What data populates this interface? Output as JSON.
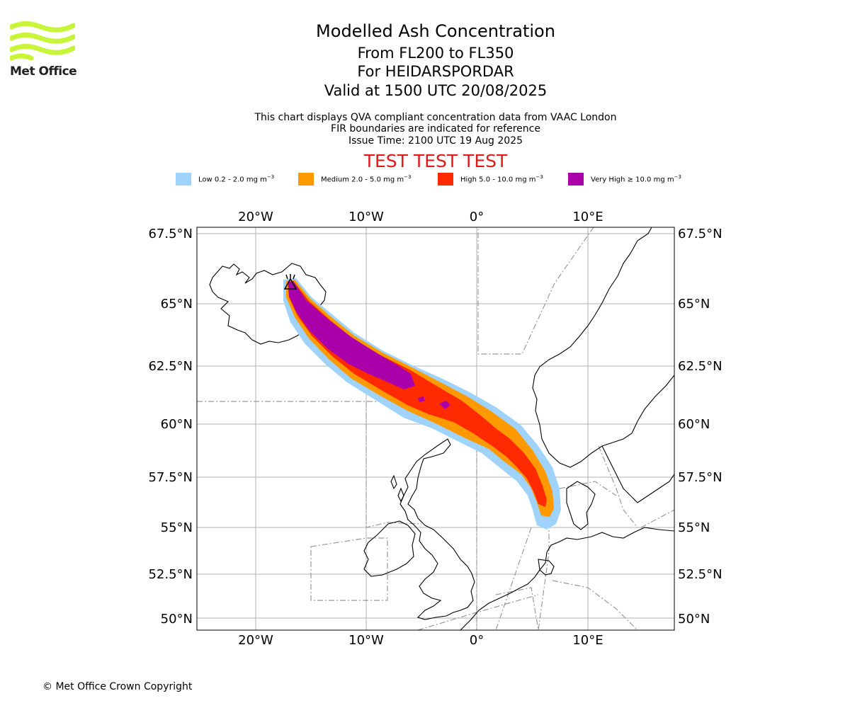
{
  "logo": {
    "text": "Met Office"
  },
  "header": {
    "title": "Modelled Ash Concentration",
    "levels": "From FL200 to FL350",
    "volcano": "For HEIDARSPORDAR",
    "valid": "Valid at 1500 UTC 20/08/2025",
    "note1": "This chart displays QVA compliant concentration data from VAAC London",
    "note2": "FIR boundaries are indicated for reference",
    "issue": "Issue Time: 2100 UTC 19 Aug 2025",
    "test": "TEST TEST TEST"
  },
  "legend": [
    {
      "label": "Low 0.2 - 2.0 mg m",
      "color": "#9fd3fb"
    },
    {
      "label": "Medium 2.0 - 5.0 mg m",
      "color": "#ff9900"
    },
    {
      "label": "High 5.0 - 10.0 mg m",
      "color": "#ff2a00"
    },
    {
      "label": "Very High ≥ 10.0 mg m",
      "color": "#aa00aa"
    }
  ],
  "legend_unit_exp": "−3",
  "map": {
    "lon_labels": [
      "20°W",
      "10°W",
      "0°",
      "10°E"
    ],
    "lat_labels": [
      "67.5°N",
      "65°N",
      "62.5°N",
      "60°N",
      "57.5°N",
      "55°N",
      "52.5°N",
      "50°N"
    ],
    "colors": {
      "low": "#9fd3fb",
      "medium": "#ff9900",
      "high": "#ff2a00",
      "very_high": "#aa00aa",
      "grid": "#b0b0b0",
      "fir": "#999999",
      "coast": "#000000"
    }
  },
  "footer": {
    "copyright": "© Met Office Crown Copyright"
  }
}
